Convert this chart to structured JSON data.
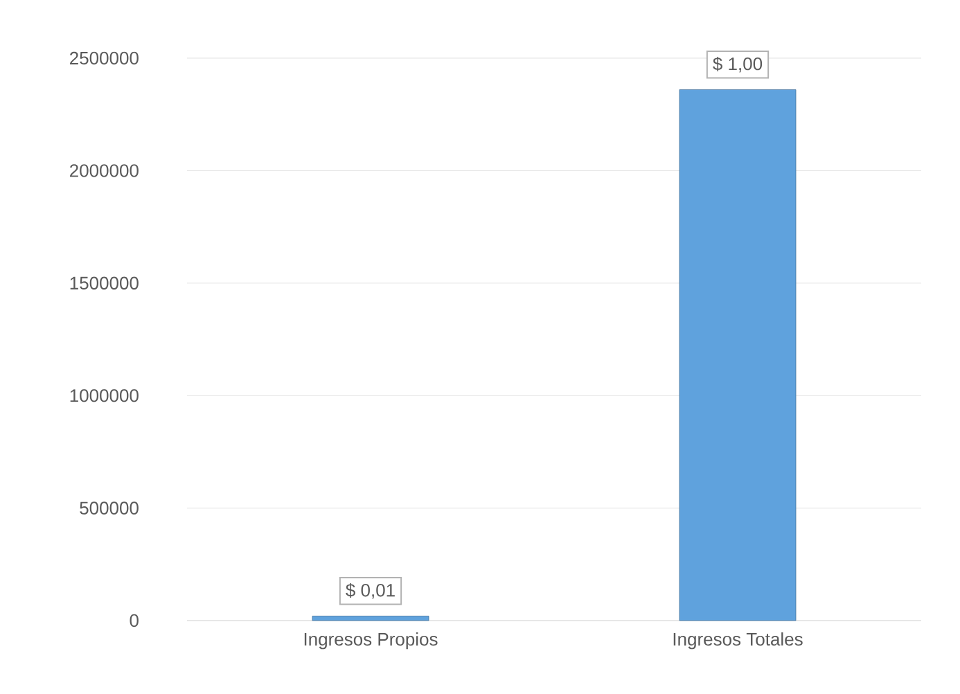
{
  "chart_data": {
    "type": "bar",
    "categories": [
      "Ingresos Propios",
      "Ingresos Totales"
    ],
    "values": [
      20000,
      2360000
    ],
    "annotations": [
      {
        "text": "$ 0,01",
        "x": "Ingresos Propios",
        "y": 20000
      },
      {
        "text": "$ 1,00",
        "x": "Ingresos Totales",
        "y": 2360000
      }
    ],
    "color": "#5fa2dd",
    "ylim": [
      0,
      2500000
    ],
    "yticks": [
      0,
      500000,
      1000000,
      1500000,
      2000000,
      2500000
    ],
    "grid": "y"
  }
}
